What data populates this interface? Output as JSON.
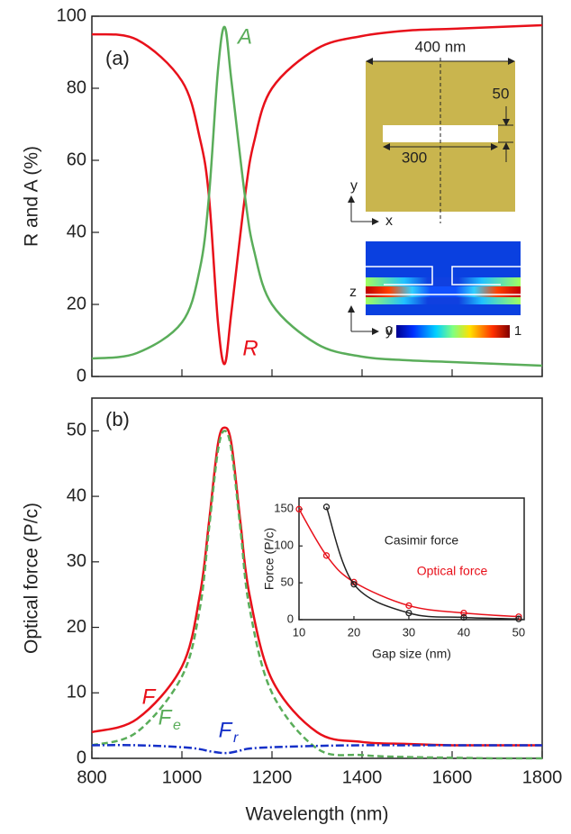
{
  "chart_data": [
    {
      "type": "line",
      "label": "(a)",
      "y_label": "R and A (%)",
      "x": [
        800,
        900,
        1000,
        1040,
        1060,
        1080,
        1095,
        1110,
        1140,
        1160,
        1200,
        1300,
        1400,
        1500,
        1600,
        1700,
        1800
      ],
      "xlim": [
        800,
        1800
      ],
      "xticks": [
        800,
        1000,
        1200,
        1400,
        1600,
        1800
      ],
      "ylim": [
        0,
        100
      ],
      "yticks": [
        0,
        20,
        40,
        60,
        80,
        100
      ],
      "series": [
        {
          "color": "#e8101a",
          "values": [
            95,
            93.5,
            82,
            66,
            50,
            15,
            3.5,
            18,
            50,
            65,
            80,
            91,
            94.5,
            96,
            96.5,
            97,
            97.5
          ]
        },
        {
          "color": "#5aad5a",
          "values": [
            5,
            6.5,
            15,
            30,
            50,
            85,
            97,
            82,
            50,
            35,
            20,
            9,
            5.5,
            4.5,
            4,
            3.5,
            3
          ]
        }
      ],
      "annotations": [
        {
          "text": "A",
          "color": "#5aad5a",
          "italic": true
        },
        {
          "text": "R",
          "color": "#e8101a",
          "italic": true
        }
      ]
    },
    {
      "type": "line",
      "label": "(b)",
      "x_label": "Wavelength (nm)",
      "y_label": "Optical force (P/c)",
      "x": [
        800,
        900,
        1000,
        1040,
        1060,
        1080,
        1095,
        1110,
        1130,
        1150,
        1200,
        1300,
        1400,
        1500,
        1600,
        1700,
        1800
      ],
      "xlim": [
        800,
        1800
      ],
      "xticks": [
        800,
        1000,
        1200,
        1400,
        1600,
        1800
      ],
      "ylim": [
        0,
        55
      ],
      "yticks": [
        0,
        10,
        20,
        30,
        40,
        50
      ],
      "series": [
        {
          "color": "#e8101a",
          "dash": "solid",
          "values": [
            4,
            6,
            14,
            25,
            36,
            48,
            50.5,
            48,
            36,
            25,
            12,
            4,
            2.5,
            2.2,
            2,
            2,
            2
          ]
        },
        {
          "color": "#5aad5a",
          "dash": "dashed",
          "values": [
            2,
            4,
            12.5,
            23,
            35,
            47,
            50,
            47,
            35,
            23,
            10,
            1.5,
            0.5,
            0.2,
            0.1,
            0,
            0
          ]
        },
        {
          "color": "#1530c8",
          "dash": "dashdot",
          "values": [
            2,
            2,
            1.7,
            1.4,
            1.1,
            0.9,
            0.8,
            0.9,
            1.2,
            1.5,
            1.7,
            1.9,
            2,
            2,
            2,
            2,
            2
          ]
        }
      ],
      "annotations": [
        {
          "text": "F",
          "color": "#e8101a",
          "italic": true
        },
        {
          "text": "F",
          "sub": "e",
          "color": "#5aad5a",
          "italic": true
        },
        {
          "text": "F",
          "sub": "r",
          "color": "#1530c8",
          "italic": true
        }
      ]
    },
    {
      "type": "line",
      "x_label": "Gap size (nm)",
      "y_label": "Force (P/c)",
      "x": [
        10,
        15,
        20,
        30,
        40,
        50
      ],
      "xlim": [
        10,
        51
      ],
      "xticks": [
        10,
        20,
        30,
        40,
        50
      ],
      "ylim": [
        0,
        165
      ],
      "yticks": [
        0,
        50,
        100,
        150
      ],
      "markers": true,
      "series": [
        {
          "color": "#e8101a",
          "values": [
            150,
            87,
            51,
            19,
            9,
            4
          ]
        },
        {
          "color": "#222222",
          "values": [
            null,
            153,
            48,
            9,
            3,
            1
          ]
        }
      ],
      "annotations": [
        {
          "text": "Casimir force",
          "color": "#222222",
          "italic": false
        },
        {
          "text": "Optical force",
          "color": "#e8101a",
          "italic": false
        }
      ]
    }
  ],
  "schematic": {
    "width_label": "400 nm",
    "gap_label": "50",
    "slot_label": "300",
    "axes_top": [
      "y",
      "x"
    ],
    "axes_bottom": [
      "z",
      "y"
    ],
    "colorbar": [
      0,
      1
    ]
  }
}
